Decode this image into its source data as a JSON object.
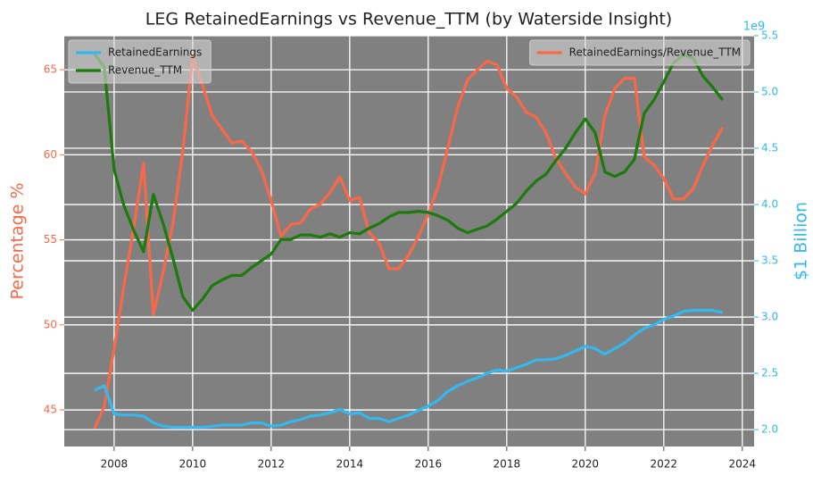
{
  "chart_data": {
    "type": "line",
    "title": "LEG RetainedEarnings vs Revenue_TTM (by Waterside Insight)",
    "ylabel": "Percentage %",
    "y2label": "$1 Billion",
    "y2_offset_label": "1e9",
    "ylabel_color": "#fa6848",
    "y2label_color": "#33b8f0",
    "background": "#808080",
    "grid": true,
    "x": [
      2007.5,
      2007.75,
      2008.0,
      2008.25,
      2008.5,
      2008.75,
      2009.0,
      2009.25,
      2009.5,
      2009.75,
      2010.0,
      2010.25,
      2010.5,
      2010.75,
      2011.0,
      2011.25,
      2011.5,
      2011.75,
      2012.0,
      2012.25,
      2012.5,
      2012.75,
      2013.0,
      2013.25,
      2013.5,
      2013.75,
      2014.0,
      2014.25,
      2014.5,
      2014.75,
      2015.0,
      2015.25,
      2015.5,
      2015.75,
      2016.0,
      2016.25,
      2016.5,
      2016.75,
      2017.0,
      2017.25,
      2017.5,
      2017.75,
      2018.0,
      2018.25,
      2018.5,
      2018.75,
      2019.0,
      2019.25,
      2019.5,
      2019.75,
      2020.0,
      2020.25,
      2020.5,
      2020.75,
      2021.0,
      2021.25,
      2021.5,
      2021.75,
      2022.0,
      2022.25,
      2022.5,
      2022.75,
      2023.0,
      2023.25,
      2023.5
    ],
    "xlim": [
      2006.73,
      2024.3
    ],
    "xticks": [
      2008,
      2010,
      2012,
      2014,
      2016,
      2018,
      2020,
      2022,
      2024
    ],
    "ylim": [
      42.85,
      67
    ],
    "yticks": [
      45,
      50,
      55,
      60,
      65
    ],
    "y2lim": [
      1.85,
      5.5
    ],
    "y2ticks": [
      {
        "value": 2,
        "label": "2.0"
      },
      {
        "value": 2.5,
        "label": "2.5"
      },
      {
        "value": 3,
        "label": "3.0"
      },
      {
        "value": 3.5,
        "label": "3.5"
      },
      {
        "value": 4,
        "label": "4.0"
      },
      {
        "value": 4.5,
        "label": "4.5"
      },
      {
        "value": 5,
        "label": "5.0"
      },
      {
        "value": 5.5,
        "label": "5.5"
      }
    ],
    "legends": [
      {
        "loc": "upper left",
        "axis": "y2"
      },
      {
        "loc": "upper right",
        "axis": "y"
      }
    ],
    "series": [
      {
        "name": "RetainedEarnings",
        "color": "#33b8f0",
        "axis": "y2",
        "values": [
          2.35,
          2.39,
          2.14,
          2.13,
          2.13,
          2.12,
          2.06,
          2.03,
          2.02,
          2.02,
          2.02,
          2.02,
          2.03,
          2.04,
          2.04,
          2.04,
          2.06,
          2.06,
          2.03,
          2.04,
          2.07,
          2.09,
          2.12,
          2.13,
          2.15,
          2.18,
          2.14,
          2.15,
          2.1,
          2.1,
          2.07,
          2.1,
          2.13,
          2.17,
          2.21,
          2.26,
          2.34,
          2.39,
          2.43,
          2.46,
          2.5,
          2.53,
          2.52,
          2.55,
          2.58,
          2.62,
          2.62,
          2.63,
          2.66,
          2.7,
          2.74,
          2.72,
          2.67,
          2.72,
          2.77,
          2.84,
          2.9,
          2.93,
          2.98,
          3.01,
          3.05,
          3.06,
          3.06,
          3.06,
          3.04
        ]
      },
      {
        "name": "Revenue_TTM",
        "color": "#1d7a0c",
        "axis": "y2",
        "values": [
          5.34,
          5.22,
          4.31,
          3.99,
          3.77,
          3.58,
          4.09,
          3.83,
          3.52,
          3.18,
          3.06,
          3.16,
          3.28,
          3.33,
          3.37,
          3.37,
          3.44,
          3.5,
          3.56,
          3.69,
          3.69,
          3.73,
          3.73,
          3.71,
          3.74,
          3.71,
          3.75,
          3.74,
          3.79,
          3.83,
          3.89,
          3.93,
          3.93,
          3.94,
          3.93,
          3.9,
          3.86,
          3.79,
          3.75,
          3.78,
          3.81,
          3.87,
          3.94,
          4.01,
          4.12,
          4.21,
          4.27,
          4.39,
          4.5,
          4.64,
          4.76,
          4.64,
          4.29,
          4.25,
          4.29,
          4.4,
          4.81,
          4.93,
          5.09,
          5.26,
          5.33,
          5.3,
          5.14,
          5.04,
          4.93
        ]
      },
      {
        "name": "RetainedEarnings/Revenue_TTM",
        "color": "#fa6848",
        "axis": "y",
        "values": [
          43.9,
          45.2,
          48.6,
          52.3,
          55.7,
          59.5,
          50.6,
          53.1,
          56.0,
          60.2,
          65.8,
          64.1,
          62.3,
          61.5,
          60.7,
          60.8,
          60.2,
          59.1,
          57.3,
          55.2,
          55.9,
          56.0,
          56.8,
          57.1,
          57.8,
          58.7,
          57.3,
          57.5,
          55.4,
          54.8,
          53.3,
          53.3,
          54.1,
          55.2,
          56.5,
          58.1,
          60.4,
          62.8,
          64.4,
          65.0,
          65.5,
          65.3,
          63.9,
          63.4,
          62.5,
          62.2,
          61.3,
          59.8,
          58.9,
          58.1,
          57.7,
          58.9,
          62.3,
          63.9,
          64.5,
          64.5,
          59.9,
          59.4,
          58.6,
          57.4,
          57.4,
          58.0,
          59.4,
          60.6,
          61.6
        ]
      }
    ]
  }
}
